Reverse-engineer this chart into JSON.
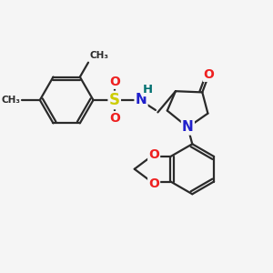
{
  "background_color": "#f5f5f5",
  "bond_color": "#2a2a2a",
  "bond_width": 1.6,
  "atom_colors": {
    "S": "#cccc00",
    "N": "#2020cc",
    "O": "#ee2020",
    "H": "#007070",
    "C": "#2a2a2a"
  },
  "font_size": 10
}
